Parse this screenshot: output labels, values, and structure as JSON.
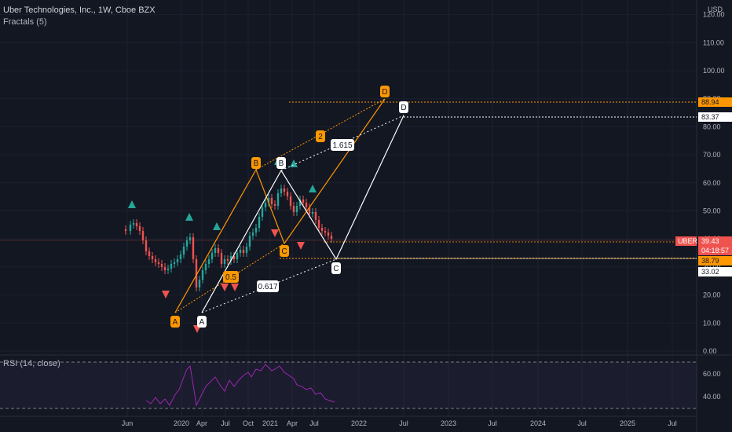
{
  "header": {
    "symbol_title": "Uber Technologies, Inc., 1W, Cboe BZX",
    "indicator": "Fractals (5)",
    "currency": "USD"
  },
  "rsi_pane": {
    "label": "RSI (14, close)",
    "levels": [
      "60.00",
      "40.00"
    ]
  },
  "price_axis": {
    "ticks": [
      "120.00",
      "110.00",
      "100.00",
      "90.00",
      "80.00",
      "70.00",
      "60.00",
      "50.00",
      "40.00",
      "30.00",
      "20.00",
      "10.00",
      "0.00"
    ],
    "tags": {
      "d_orange": "88.94",
      "d_white": "83.37",
      "symbol": "UBER",
      "last_price": "39.43",
      "countdown": "04:18:57",
      "c_orange": "38.79",
      "c_white": "33.02"
    }
  },
  "time_axis": {
    "ticks": [
      "Jun",
      "2020",
      "Apr",
      "Jul",
      "Oct",
      "2021",
      "Apr",
      "Jul",
      "2022",
      "Jul",
      "2023",
      "Jul",
      "2024",
      "Jul",
      "2025",
      "Jul"
    ]
  },
  "pattern_labels": {
    "orange": [
      "A",
      "B",
      "C",
      "D",
      "0.5",
      "2"
    ],
    "white": [
      "A",
      "B",
      "C",
      "D",
      "0.617",
      "1.615"
    ]
  },
  "colors": {
    "background": "#131722",
    "orange": "#ff9800",
    "white": "#ffffff",
    "bull_candle": "#26a69a",
    "bear_candle": "#ef5350",
    "rsi_line": "#9c27b0",
    "fractal_up": "#26a69a",
    "fractal_down": "#ef5350"
  }
}
